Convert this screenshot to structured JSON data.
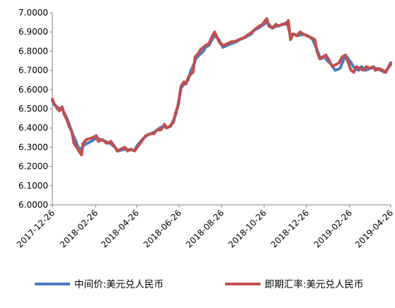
{
  "chart_data": {
    "type": "line",
    "title": "",
    "xlabel": "",
    "ylabel": "",
    "ylim": [
      6.0,
      7.0
    ],
    "yticks": [
      "7.0000",
      "6.9000",
      "6.8000",
      "6.7000",
      "6.6000",
      "6.5000",
      "6.4000",
      "6.3000",
      "6.2000",
      "6.1000",
      "6.0000"
    ],
    "xlim": [
      "2017-12-26",
      "2019-04-26"
    ],
    "xticks": [
      "2017-12-26",
      "2018-02-26",
      "2018-04-26",
      "2018-06-26",
      "2018-08-26",
      "2018-10-26",
      "2018-12-26",
      "2019-02-26",
      "2019-04-26"
    ],
    "grid": false,
    "legend_position": "bottom",
    "series": [
      {
        "name": "中间价:美元兑人民币",
        "color": "#4a7cc2",
        "points": [
          [
            "2017-12-26",
            6.54
          ],
          [
            "2017-12-29",
            6.52
          ],
          [
            "2018-01-03",
            6.505
          ],
          [
            "2018-01-08",
            6.5
          ],
          [
            "2018-01-12",
            6.48
          ],
          [
            "2018-01-16",
            6.45
          ],
          [
            "2018-01-19",
            6.42
          ],
          [
            "2018-01-24",
            6.37
          ],
          [
            "2018-01-29",
            6.33
          ],
          [
            "2018-02-01",
            6.3
          ],
          [
            "2018-02-05",
            6.29
          ],
          [
            "2018-02-09",
            6.31
          ],
          [
            "2018-02-14",
            6.32
          ],
          [
            "2018-02-22",
            6.335
          ],
          [
            "2018-02-28",
            6.35
          ],
          [
            "2018-03-05",
            6.34
          ],
          [
            "2018-03-12",
            6.33
          ],
          [
            "2018-03-19",
            6.32
          ],
          [
            "2018-03-26",
            6.3
          ],
          [
            "2018-03-30",
            6.28
          ],
          [
            "2018-04-04",
            6.285
          ],
          [
            "2018-04-11",
            6.29
          ],
          [
            "2018-04-18",
            6.285
          ],
          [
            "2018-04-23",
            6.285
          ],
          [
            "2018-04-27",
            6.31
          ],
          [
            "2018-05-04",
            6.34
          ],
          [
            "2018-05-10",
            6.36
          ],
          [
            "2018-05-16",
            6.37
          ],
          [
            "2018-05-22",
            6.38
          ],
          [
            "2018-05-29",
            6.4
          ],
          [
            "2018-06-04",
            6.41
          ],
          [
            "2018-06-08",
            6.4
          ],
          [
            "2018-06-14",
            6.41
          ],
          [
            "2018-06-19",
            6.45
          ],
          [
            "2018-06-22",
            6.48
          ],
          [
            "2018-06-26",
            6.55
          ],
          [
            "2018-06-29",
            6.61
          ],
          [
            "2018-07-04",
            6.63
          ],
          [
            "2018-07-09",
            6.65
          ],
          [
            "2018-07-13",
            6.7
          ],
          [
            "2018-07-17",
            6.73
          ],
          [
            "2018-07-20",
            6.76
          ],
          [
            "2018-07-25",
            6.78
          ],
          [
            "2018-07-31",
            6.8
          ],
          [
            "2018-08-03",
            6.82
          ],
          [
            "2018-08-08",
            6.83
          ],
          [
            "2018-08-14",
            6.87
          ],
          [
            "2018-08-17",
            6.88
          ],
          [
            "2018-08-22",
            6.86
          ],
          [
            "2018-08-28",
            6.82
          ],
          [
            "2018-09-03",
            6.83
          ],
          [
            "2018-09-10",
            6.84
          ],
          [
            "2018-09-17",
            6.85
          ],
          [
            "2018-09-21",
            6.86
          ],
          [
            "2018-09-28",
            6.87
          ],
          [
            "2018-10-08",
            6.89
          ],
          [
            "2018-10-12",
            6.91
          ],
          [
            "2018-10-18",
            6.92
          ],
          [
            "2018-10-24",
            6.935
          ],
          [
            "2018-10-30",
            6.95
          ],
          [
            "2018-11-02",
            6.94
          ],
          [
            "2018-11-07",
            6.92
          ],
          [
            "2018-11-13",
            6.93
          ],
          [
            "2018-11-19",
            6.935
          ],
          [
            "2018-11-23",
            6.94
          ],
          [
            "2018-11-28",
            6.95
          ],
          [
            "2018-12-03",
            6.88
          ],
          [
            "2018-12-07",
            6.89
          ],
          [
            "2018-12-13",
            6.88
          ],
          [
            "2018-12-18",
            6.885
          ],
          [
            "2018-12-24",
            6.885
          ],
          [
            "2018-12-28",
            6.88
          ],
          [
            "2019-01-04",
            6.86
          ],
          [
            "2019-01-10",
            6.81
          ],
          [
            "2019-01-15",
            6.76
          ],
          [
            "2019-01-21",
            6.77
          ],
          [
            "2019-01-25",
            6.75
          ],
          [
            "2019-01-31",
            6.73
          ],
          [
            "2019-02-05",
            6.7
          ],
          [
            "2019-02-12",
            6.71
          ],
          [
            "2019-02-18",
            6.76
          ],
          [
            "2019-02-22",
            6.77
          ],
          [
            "2019-02-28",
            6.74
          ],
          [
            "2019-03-05",
            6.71
          ],
          [
            "2019-03-11",
            6.7
          ],
          [
            "2019-03-15",
            6.72
          ],
          [
            "2019-03-21",
            6.7
          ],
          [
            "2019-03-27",
            6.71
          ],
          [
            "2019-04-02",
            6.715
          ],
          [
            "2019-04-08",
            6.705
          ],
          [
            "2019-04-12",
            6.7
          ],
          [
            "2019-04-17",
            6.69
          ],
          [
            "2019-04-22",
            6.71
          ],
          [
            "2019-04-26",
            6.73
          ]
        ]
      },
      {
        "name": "即期汇率:美元兑人民币",
        "color": "#c0504d",
        "points": [
          [
            "2017-12-26",
            6.55
          ],
          [
            "2017-12-28",
            6.53
          ],
          [
            "2018-01-02",
            6.5
          ],
          [
            "2018-01-05",
            6.49
          ],
          [
            "2018-01-09",
            6.51
          ],
          [
            "2018-01-12",
            6.47
          ],
          [
            "2018-01-16",
            6.44
          ],
          [
            "2018-01-19",
            6.41
          ],
          [
            "2018-01-23",
            6.38
          ],
          [
            "2018-01-26",
            6.32
          ],
          [
            "2018-01-30",
            6.3
          ],
          [
            "2018-02-02",
            6.28
          ],
          [
            "2018-02-06",
            6.26
          ],
          [
            "2018-02-08",
            6.32
          ],
          [
            "2018-02-13",
            6.34
          ],
          [
            "2018-02-22",
            6.35
          ],
          [
            "2018-02-27",
            6.36
          ],
          [
            "2018-03-02",
            6.33
          ],
          [
            "2018-03-08",
            6.34
          ],
          [
            "2018-03-14",
            6.32
          ],
          [
            "2018-03-20",
            6.33
          ],
          [
            "2018-03-26",
            6.3
          ],
          [
            "2018-03-29",
            6.28
          ],
          [
            "2018-04-03",
            6.29
          ],
          [
            "2018-04-09",
            6.3
          ],
          [
            "2018-04-13",
            6.28
          ],
          [
            "2018-04-18",
            6.29
          ],
          [
            "2018-04-23",
            6.28
          ],
          [
            "2018-04-27",
            6.3
          ],
          [
            "2018-05-03",
            6.33
          ],
          [
            "2018-05-09",
            6.36
          ],
          [
            "2018-05-15",
            6.37
          ],
          [
            "2018-05-21",
            6.37
          ],
          [
            "2018-05-25",
            6.39
          ],
          [
            "2018-05-31",
            6.39
          ],
          [
            "2018-06-05",
            6.42
          ],
          [
            "2018-06-08",
            6.4
          ],
          [
            "2018-06-13",
            6.41
          ],
          [
            "2018-06-18",
            6.43
          ],
          [
            "2018-06-21",
            6.48
          ],
          [
            "2018-06-25",
            6.52
          ],
          [
            "2018-06-27",
            6.58
          ],
          [
            "2018-06-29",
            6.62
          ],
          [
            "2018-07-03",
            6.64
          ],
          [
            "2018-07-06",
            6.63
          ],
          [
            "2018-07-10",
            6.67
          ],
          [
            "2018-07-13",
            6.68
          ],
          [
            "2018-07-16",
            6.69
          ],
          [
            "2018-07-19",
            6.77
          ],
          [
            "2018-07-24",
            6.79
          ],
          [
            "2018-07-27",
            6.81
          ],
          [
            "2018-07-31",
            6.82
          ],
          [
            "2018-08-03",
            6.83
          ],
          [
            "2018-08-08",
            6.84
          ],
          [
            "2018-08-13",
            6.88
          ],
          [
            "2018-08-16",
            6.9
          ],
          [
            "2018-08-21",
            6.86
          ],
          [
            "2018-08-24",
            6.84
          ],
          [
            "2018-08-29",
            6.83
          ],
          [
            "2018-09-04",
            6.84
          ],
          [
            "2018-09-10",
            6.85
          ],
          [
            "2018-09-14",
            6.85
          ],
          [
            "2018-09-20",
            6.86
          ],
          [
            "2018-09-27",
            6.87
          ],
          [
            "2018-10-09",
            6.9
          ],
          [
            "2018-10-15",
            6.92
          ],
          [
            "2018-10-19",
            6.93
          ],
          [
            "2018-10-24",
            6.94
          ],
          [
            "2018-10-30",
            6.97
          ],
          [
            "2018-11-02",
            6.93
          ],
          [
            "2018-11-07",
            6.92
          ],
          [
            "2018-11-12",
            6.94
          ],
          [
            "2018-11-16",
            6.93
          ],
          [
            "2018-11-21",
            6.94
          ],
          [
            "2018-11-27",
            6.94
          ],
          [
            "2018-11-30",
            6.96
          ],
          [
            "2018-12-03",
            6.86
          ],
          [
            "2018-12-07",
            6.89
          ],
          [
            "2018-12-12",
            6.88
          ],
          [
            "2018-12-17",
            6.9
          ],
          [
            "2018-12-21",
            6.89
          ],
          [
            "2018-12-26",
            6.88
          ],
          [
            "2019-01-02",
            6.87
          ],
          [
            "2019-01-07",
            6.86
          ],
          [
            "2019-01-10",
            6.8
          ],
          [
            "2019-01-14",
            6.76
          ],
          [
            "2019-01-18",
            6.77
          ],
          [
            "2019-01-23",
            6.78
          ],
          [
            "2019-01-28",
            6.75
          ],
          [
            "2019-02-01",
            6.72
          ],
          [
            "2019-02-11",
            6.74
          ],
          [
            "2019-02-15",
            6.77
          ],
          [
            "2019-02-20",
            6.78
          ],
          [
            "2019-02-25",
            6.73
          ],
          [
            "2019-02-28",
            6.7
          ],
          [
            "2019-03-04",
            6.69
          ],
          [
            "2019-03-08",
            6.72
          ],
          [
            "2019-03-13",
            6.71
          ],
          [
            "2019-03-18",
            6.7
          ],
          [
            "2019-03-22",
            6.72
          ],
          [
            "2019-03-27",
            6.71
          ],
          [
            "2019-04-01",
            6.72
          ],
          [
            "2019-04-04",
            6.7
          ],
          [
            "2019-04-09",
            6.71
          ],
          [
            "2019-04-15",
            6.7
          ],
          [
            "2019-04-19",
            6.69
          ],
          [
            "2019-04-23",
            6.72
          ],
          [
            "2019-04-26",
            6.74
          ]
        ]
      }
    ]
  }
}
